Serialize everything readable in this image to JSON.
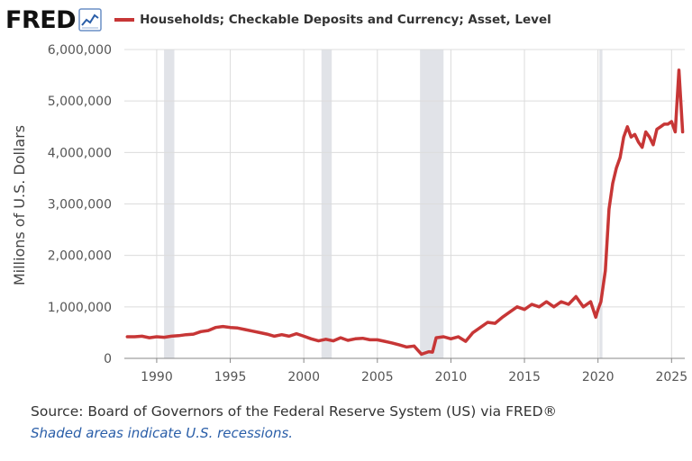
{
  "brand": {
    "logo_text": "FRED",
    "logo_icon": "chart-line-icon"
  },
  "legend": {
    "label": "Households; Checkable Deposits and Currency; Asset, Level",
    "color": "#c73636"
  },
  "footer": {
    "source": "Source: Board of Governors of the Federal Reserve System (US) via FRED®",
    "recession_note": "Shaded areas indicate U.S. recessions."
  },
  "chart_data": {
    "type": "line",
    "title": "",
    "ylabel": "Millions of U.S. Dollars",
    "xlabel": "",
    "xlim": [
      1987.8,
      2025.9
    ],
    "ylim": [
      0,
      6000000
    ],
    "x_ticks": [
      1990,
      1995,
      2000,
      2005,
      2010,
      2015,
      2020,
      2025
    ],
    "y_ticks": [
      0,
      1000000,
      2000000,
      3000000,
      4000000,
      5000000,
      6000000
    ],
    "y_tick_labels": [
      "0",
      "1,000,000",
      "2,000,000",
      "3,000,000",
      "4,000,000",
      "5,000,000",
      "6,000,000"
    ],
    "grid": true,
    "line_color": "#c73636",
    "recession_fill": "#e1e3e8",
    "recessions": [
      [
        1990.5,
        1991.2
      ],
      [
        2001.2,
        2001.9
      ],
      [
        2007.9,
        2009.5
      ],
      [
        2020.1,
        2020.3
      ]
    ],
    "series": [
      {
        "name": "Households; Checkable Deposits and Currency; Asset, Level",
        "x": [
          1988,
          1988.5,
          1989,
          1989.5,
          1990,
          1990.5,
          1991,
          1991.5,
          1992,
          1992.5,
          1993,
          1993.5,
          1994,
          1994.5,
          1995,
          1995.5,
          1996,
          1996.5,
          1997,
          1997.5,
          1998,
          1998.5,
          1999,
          1999.5,
          2000,
          2000.5,
          2001,
          2001.5,
          2002,
          2002.5,
          2003,
          2003.5,
          2004,
          2004.5,
          2005,
          2005.5,
          2006,
          2006.5,
          2007,
          2007.5,
          2007.75,
          2008,
          2008.5,
          2008.75,
          2009,
          2009.5,
          2010,
          2010.5,
          2011,
          2011.5,
          2012,
          2012.5,
          2013,
          2013.5,
          2014,
          2014.5,
          2015,
          2015.5,
          2016,
          2016.5,
          2017,
          2017.5,
          2018,
          2018.5,
          2019,
          2019.5,
          2019.85,
          2020,
          2020.2,
          2020.5,
          2020.75,
          2021,
          2021.25,
          2021.5,
          2021.75,
          2022,
          2022.25,
          2022.5,
          2022.75,
          2023,
          2023.25,
          2023.5,
          2023.75,
          2024,
          2024.25,
          2024.5,
          2024.75,
          2025,
          2025.25,
          2025.5,
          2025.75
        ],
        "values": [
          420000,
          420000,
          430000,
          400000,
          420000,
          410000,
          430000,
          440000,
          460000,
          470000,
          520000,
          540000,
          600000,
          620000,
          600000,
          590000,
          560000,
          530000,
          500000,
          470000,
          430000,
          460000,
          430000,
          480000,
          430000,
          380000,
          340000,
          370000,
          340000,
          400000,
          350000,
          380000,
          390000,
          360000,
          360000,
          330000,
          300000,
          260000,
          220000,
          240000,
          160000,
          80000,
          130000,
          120000,
          400000,
          420000,
          380000,
          420000,
          330000,
          500000,
          600000,
          700000,
          680000,
          800000,
          900000,
          1000000,
          950000,
          1050000,
          1000000,
          1100000,
          1000000,
          1100000,
          1050000,
          1200000,
          1000000,
          1100000,
          800000,
          950000,
          1100000,
          1700000,
          2900000,
          3400000,
          3700000,
          3900000,
          4300000,
          4500000,
          4300000,
          4350000,
          4200000,
          4100000,
          4400000,
          4300000,
          4150000,
          4450000,
          4500000,
          4550000,
          4550000,
          4600000,
          4400000,
          5600000,
          4400000
        ]
      }
    ]
  }
}
